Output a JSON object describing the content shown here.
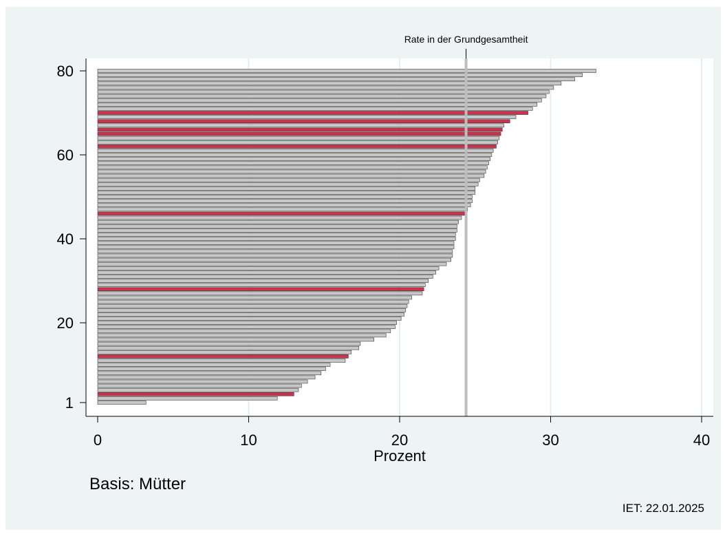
{
  "chart_data": {
    "type": "bar",
    "orientation": "horizontal",
    "xlabel": "Prozent",
    "xlim": [
      0,
      40
    ],
    "xticks": [
      0,
      10,
      20,
      30,
      40
    ],
    "ylim": [
      1,
      80
    ],
    "yticks": [
      1,
      20,
      40,
      60,
      80
    ],
    "grid": true,
    "legend": "none",
    "reference_line": {
      "label": "Rate in der Grundgesamtheit",
      "value": 24.4
    },
    "note_left": "Basis: Mütter",
    "note_right": "IET: 22.01.2025",
    "colors": {
      "highlight": "#c8334f",
      "default": "#c8c8c8",
      "background": "#eef3f3",
      "refline": "#bdbdbd"
    },
    "rank": [
      1,
      2,
      3,
      4,
      5,
      6,
      7,
      8,
      9,
      10,
      11,
      12,
      13,
      14,
      15,
      16,
      17,
      18,
      19,
      20,
      21,
      22,
      23,
      24,
      25,
      26,
      27,
      28,
      29,
      30,
      31,
      32,
      33,
      34,
      35,
      36,
      37,
      38,
      39,
      40,
      41,
      42,
      43,
      44,
      45,
      46,
      47,
      48,
      49,
      50,
      51,
      52,
      53,
      54,
      55,
      56,
      57,
      58,
      59,
      60,
      61,
      62,
      63,
      64,
      65,
      66,
      67,
      68,
      69,
      70,
      71,
      72,
      73,
      74,
      75,
      76,
      77,
      78,
      79,
      80
    ],
    "values": [
      3.2,
      11.9,
      13.0,
      13.3,
      13.5,
      13.9,
      14.4,
      14.8,
      15.1,
      15.4,
      16.4,
      16.6,
      16.8,
      17.3,
      17.4,
      18.3,
      19.1,
      19.4,
      19.7,
      19.8,
      20.1,
      20.3,
      20.4,
      20.5,
      20.6,
      20.8,
      21.5,
      21.6,
      21.7,
      21.9,
      22.2,
      22.4,
      22.6,
      23.1,
      23.4,
      23.5,
      23.5,
      23.6,
      23.6,
      23.7,
      23.7,
      23.8,
      23.8,
      23.9,
      24.1,
      24.3,
      24.5,
      24.7,
      24.8,
      24.8,
      25.0,
      25.0,
      25.2,
      25.3,
      25.6,
      25.7,
      25.8,
      25.9,
      26.0,
      26.1,
      26.2,
      26.4,
      26.5,
      26.6,
      26.7,
      26.8,
      26.9,
      27.3,
      27.7,
      28.5,
      28.8,
      29.1,
      29.4,
      29.7,
      29.9,
      30.2,
      30.7,
      31.6,
      32.1,
      33.0
    ],
    "highlighted": [
      false,
      false,
      true,
      false,
      false,
      false,
      false,
      false,
      false,
      false,
      false,
      true,
      false,
      false,
      false,
      false,
      false,
      false,
      false,
      false,
      false,
      false,
      false,
      false,
      false,
      false,
      false,
      true,
      false,
      false,
      false,
      false,
      false,
      false,
      false,
      false,
      false,
      false,
      false,
      false,
      false,
      false,
      false,
      false,
      false,
      true,
      false,
      false,
      false,
      false,
      false,
      false,
      false,
      false,
      false,
      false,
      false,
      false,
      false,
      false,
      false,
      true,
      false,
      false,
      true,
      true,
      false,
      true,
      false,
      true,
      false,
      false,
      false,
      false,
      false,
      false,
      false,
      false,
      false,
      false
    ]
  }
}
